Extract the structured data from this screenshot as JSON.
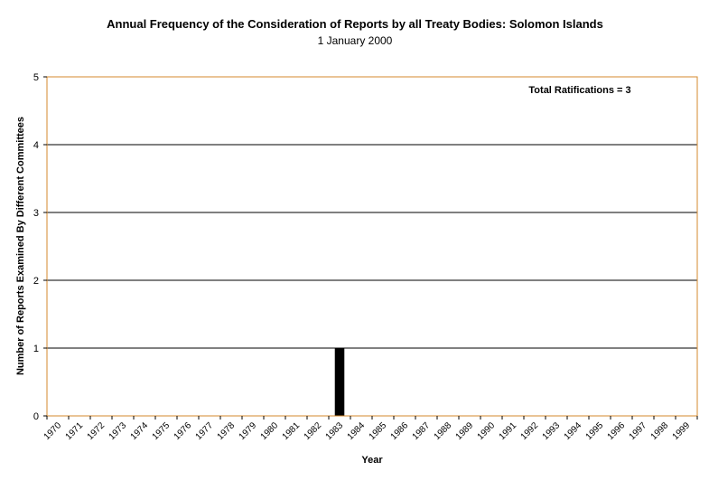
{
  "chart_data": {
    "type": "bar",
    "title": "Annual Frequency of the Consideration of Reports by all Treaty Bodies: Solomon Islands",
    "subtitle": "1 January 2000",
    "xlabel": "Year",
    "ylabel": "Number of Reports Examined By Different Committees",
    "annotation": "Total Ratifications = 3",
    "categories": [
      "1970",
      "1971",
      "1972",
      "1973",
      "1974",
      "1975",
      "1976",
      "1977",
      "1978",
      "1979",
      "1980",
      "1981",
      "1982",
      "1983",
      "1984",
      "1985",
      "1986",
      "1987",
      "1988",
      "1989",
      "1990",
      "1991",
      "1992",
      "1993",
      "1994",
      "1995",
      "1996",
      "1997",
      "1998",
      "1999"
    ],
    "values": [
      0,
      0,
      0,
      0,
      0,
      0,
      0,
      0,
      0,
      0,
      0,
      0,
      0,
      1,
      0,
      0,
      0,
      0,
      0,
      0,
      0,
      0,
      0,
      0,
      0,
      0,
      0,
      0,
      0,
      0
    ],
    "ylim": [
      0,
      5
    ],
    "yticks": [
      0,
      1,
      2,
      3,
      4,
      5
    ],
    "grid": true,
    "colors": {
      "bar": "#000000",
      "frame": "#d48a2c",
      "grid": "#000000"
    }
  }
}
